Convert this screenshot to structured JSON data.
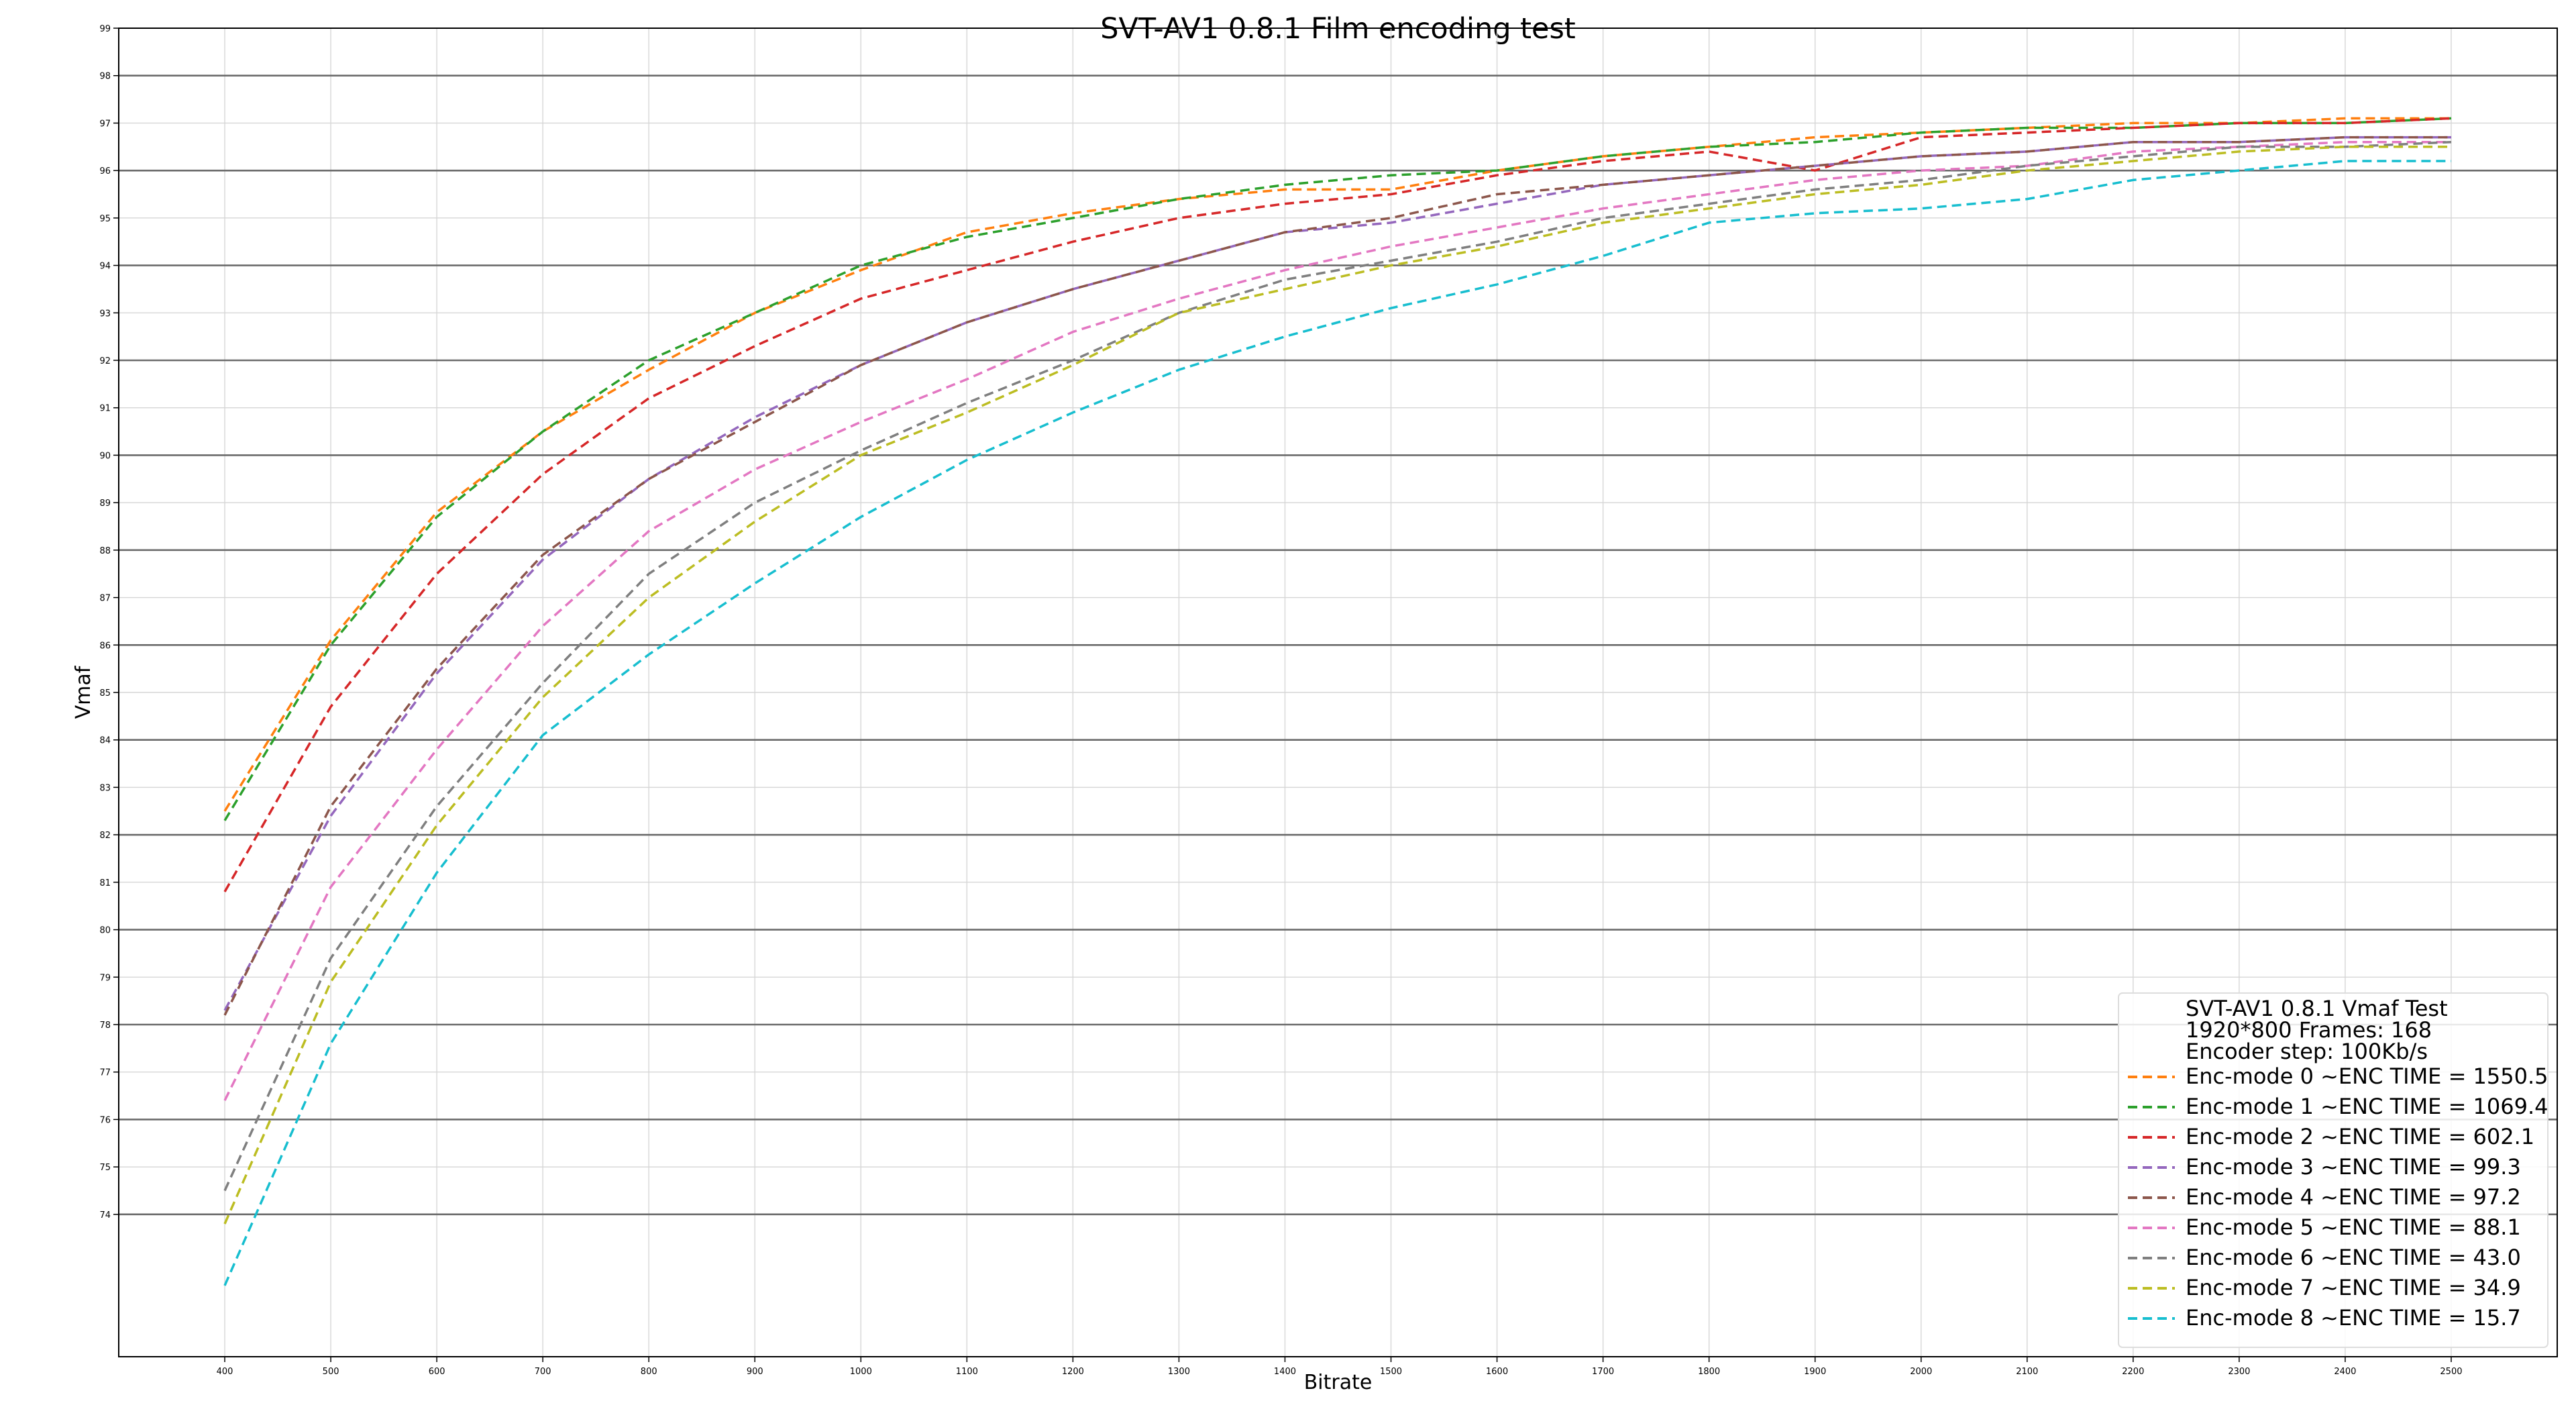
{
  "chart_data": {
    "type": "line",
    "title": "SVT-AV1 0.8.1 Film encoding test",
    "xlabel": "Bitrate",
    "ylabel": "Vmaf",
    "xlim": [
      300,
      2600
    ],
    "ylim": [
      71,
      99
    ],
    "x_ticks": [
      400,
      500,
      600,
      700,
      800,
      900,
      1000,
      1100,
      1200,
      1300,
      1400,
      1500,
      1600,
      1700,
      1800,
      1900,
      2000,
      2100,
      2200,
      2300,
      2400,
      2500
    ],
    "y_ticks": [
      74,
      75,
      76,
      77,
      78,
      79,
      80,
      81,
      82,
      83,
      84,
      85,
      86,
      87,
      88,
      89,
      90,
      91,
      92,
      93,
      94,
      95,
      96,
      97,
      98,
      99
    ],
    "grid": true,
    "line_style": "dashed",
    "legend_position": "bottom-right",
    "legend_title_lines": [
      "SVT-AV1 0.8.1 Vmaf Test",
      "1920*800 Frames: 168",
      "Encoder step: 100Kb/s"
    ],
    "x": [
      400,
      500,
      600,
      700,
      800,
      900,
      1000,
      1100,
      1200,
      1300,
      1400,
      1500,
      1600,
      1700,
      1800,
      1900,
      2000,
      2100,
      2200,
      2300,
      2400,
      2500
    ],
    "series": [
      {
        "name": "Enc-mode 0 ~ENC TIME = 1550.5",
        "color": "#ff7f0e",
        "values": [
          82.5,
          86.1,
          88.8,
          90.5,
          91.8,
          93.0,
          93.9,
          94.7,
          95.1,
          95.4,
          95.6,
          95.6,
          96.0,
          96.3,
          96.5,
          96.7,
          96.8,
          96.9,
          97.0,
          97.0,
          97.1,
          97.1
        ]
      },
      {
        "name": "Enc-mode 1 ~ENC TIME = 1069.4",
        "color": "#2ca02c",
        "values": [
          82.3,
          86.0,
          88.7,
          90.5,
          92.0,
          93.0,
          94.0,
          94.6,
          95.0,
          95.4,
          95.7,
          95.9,
          96.0,
          96.3,
          96.5,
          96.6,
          96.8,
          96.9,
          96.9,
          97.0,
          97.0,
          97.1
        ]
      },
      {
        "name": "Enc-mode 2 ~ENC TIME = 602.1",
        "color": "#d62728",
        "values": [
          80.8,
          84.7,
          87.5,
          89.6,
          91.2,
          92.3,
          93.3,
          93.9,
          94.5,
          95.0,
          95.3,
          95.5,
          95.9,
          96.2,
          96.4,
          96.0,
          96.7,
          96.8,
          96.9,
          97.0,
          97.0,
          97.1
        ]
      },
      {
        "name": "Enc-mode 3 ~ENC TIME = 99.3",
        "color": "#9467bd",
        "values": [
          78.3,
          82.4,
          85.4,
          87.8,
          89.5,
          90.8,
          91.9,
          92.8,
          93.5,
          94.1,
          94.7,
          94.9,
          95.3,
          95.7,
          95.9,
          96.1,
          96.3,
          96.4,
          96.6,
          96.6,
          96.7,
          96.7
        ]
      },
      {
        "name": "Enc-mode 4 ~ENC TIME = 97.2",
        "color": "#8c564b",
        "values": [
          78.2,
          82.6,
          85.5,
          87.9,
          89.5,
          90.7,
          91.9,
          92.8,
          93.5,
          94.1,
          94.7,
          95.0,
          95.5,
          95.7,
          95.9,
          96.1,
          96.3,
          96.4,
          96.6,
          96.6,
          96.7,
          96.7
        ]
      },
      {
        "name": "Enc-mode 5 ~ENC TIME = 88.1",
        "color": "#e377c2",
        "values": [
          76.4,
          80.9,
          83.8,
          86.4,
          88.4,
          89.7,
          90.7,
          91.6,
          92.6,
          93.3,
          93.9,
          94.4,
          94.8,
          95.2,
          95.5,
          95.8,
          96.0,
          96.1,
          96.4,
          96.5,
          96.6,
          96.6
        ]
      },
      {
        "name": "Enc-mode 6 ~ENC TIME = 43.0",
        "color": "#7f7f7f",
        "values": [
          74.5,
          79.4,
          82.6,
          85.2,
          87.5,
          89.0,
          90.1,
          91.1,
          92.0,
          93.0,
          93.7,
          94.1,
          94.5,
          95.0,
          95.3,
          95.6,
          95.8,
          96.1,
          96.3,
          96.5,
          96.5,
          96.6
        ]
      },
      {
        "name": "Enc-mode 7 ~ENC TIME = 34.9",
        "color": "#bcbd22",
        "values": [
          73.8,
          78.9,
          82.2,
          84.9,
          87.0,
          88.6,
          90.0,
          90.9,
          91.9,
          93.0,
          93.5,
          94.0,
          94.4,
          94.9,
          95.2,
          95.5,
          95.7,
          96.0,
          96.2,
          96.4,
          96.5,
          96.5
        ]
      },
      {
        "name": "Enc-mode 8 ~ENC TIME = 15.7",
        "color": "#17becf",
        "values": [
          72.5,
          77.6,
          81.2,
          84.1,
          85.8,
          87.3,
          88.7,
          89.9,
          90.9,
          91.8,
          92.5,
          93.1,
          93.6,
          94.2,
          94.9,
          95.1,
          95.2,
          95.4,
          95.8,
          96.0,
          96.2,
          96.2
        ]
      }
    ]
  }
}
